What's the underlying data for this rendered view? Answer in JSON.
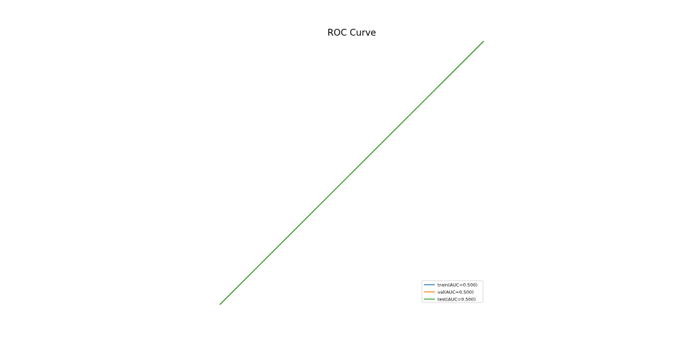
{
  "chart_data": {
    "type": "line",
    "title": "ROC Curve",
    "xlabel": "",
    "ylabel": "",
    "xlim": [
      0,
      1
    ],
    "ylim": [
      0,
      1
    ],
    "axes_visible": false,
    "grid": false,
    "legend_position": "bottom-right",
    "series": [
      {
        "name": "train(AUC=0.500)",
        "color": "#1f77b4",
        "x": [
          0,
          1
        ],
        "y": [
          0,
          1
        ]
      },
      {
        "name": "val(AUC=0.500)",
        "color": "#ff7f0e",
        "x": [
          0,
          1
        ],
        "y": [
          0,
          1
        ]
      },
      {
        "name": "test(AUC=0.500)",
        "color": "#2ca02c",
        "x": [
          0,
          1
        ],
        "y": [
          0,
          1
        ]
      }
    ]
  }
}
